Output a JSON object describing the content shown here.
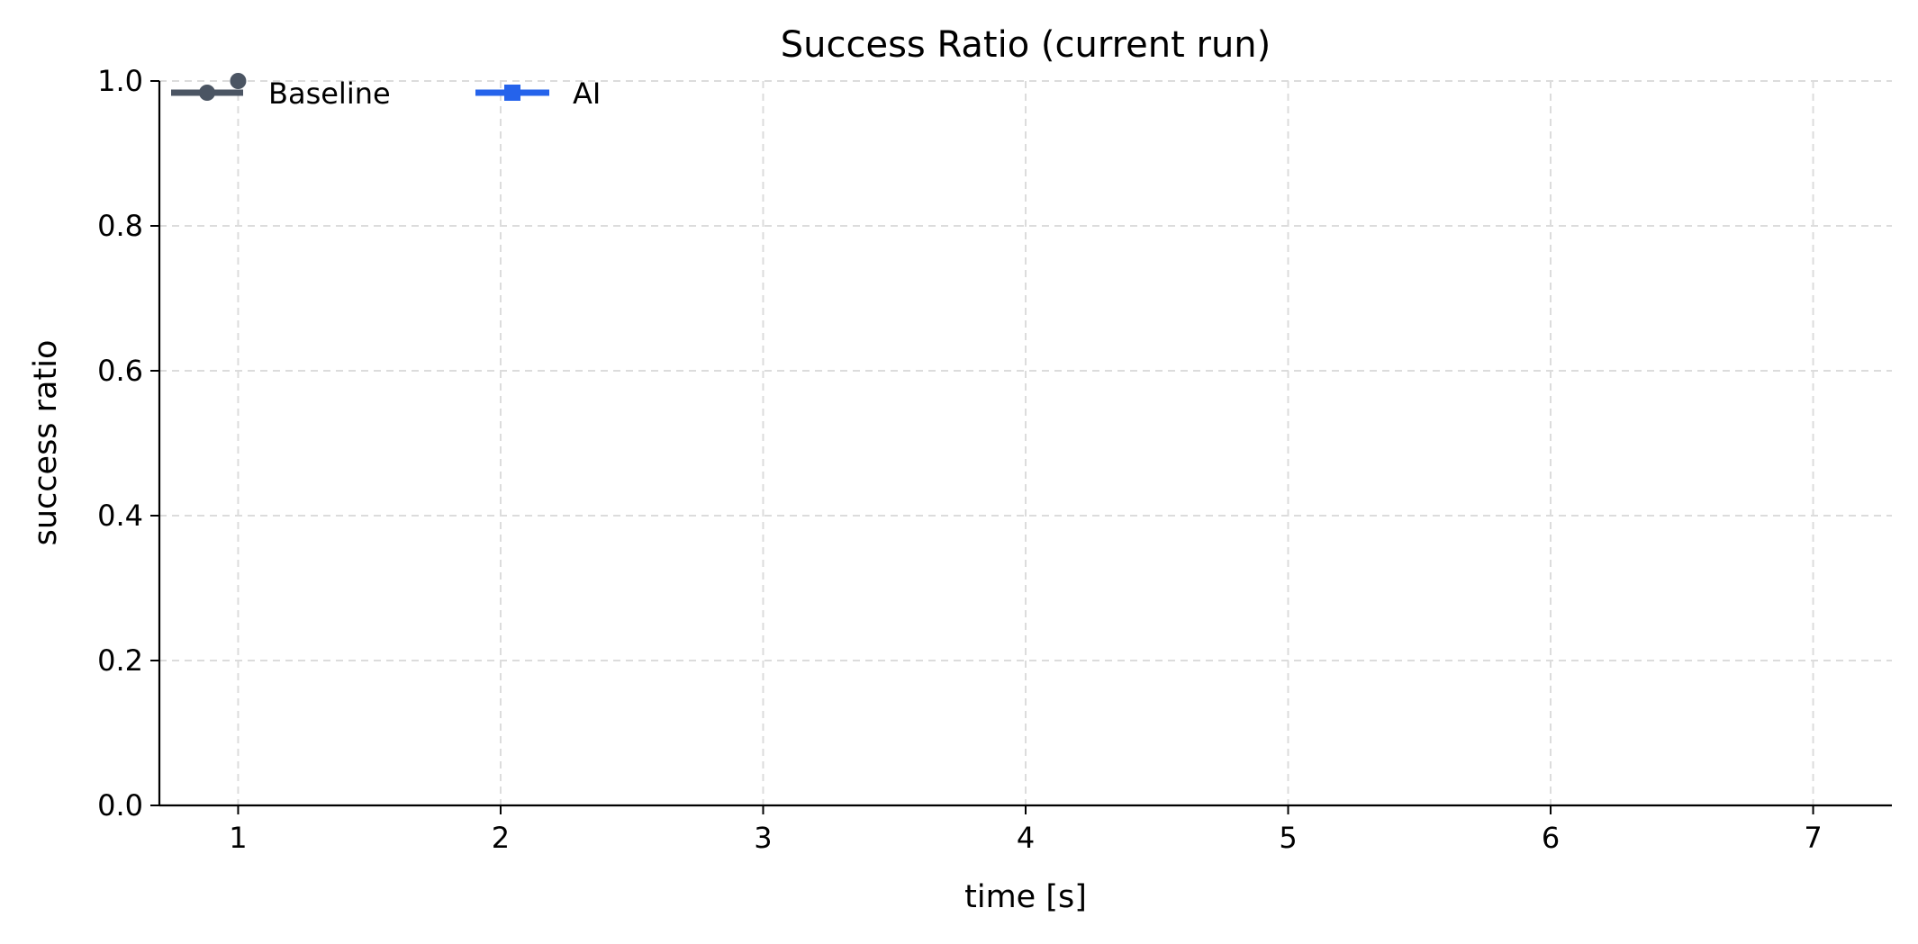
{
  "chart_data": {
    "type": "line",
    "title": "Success Ratio (current run)",
    "xlabel": "time [s]",
    "ylabel": "success ratio",
    "xlim": [
      0.7,
      7.3
    ],
    "ylim": [
      0.0,
      1.0
    ],
    "xticks": [
      1,
      2,
      3,
      4,
      5,
      6,
      7
    ],
    "yticks": [
      0.0,
      0.2,
      0.4,
      0.6,
      0.8,
      1.0
    ],
    "x_tick_labels": [
      "1",
      "2",
      "3",
      "4",
      "5",
      "6",
      "7"
    ],
    "y_tick_labels": [
      "0.0",
      "0.2",
      "0.4",
      "0.6",
      "0.8",
      "1.0"
    ],
    "grid": true,
    "legend_placement": "top-left",
    "series": [
      {
        "name": "Baseline",
        "color": "#4b5563",
        "marker": "circle",
        "x": [
          1
        ],
        "y": [
          1.0
        ]
      },
      {
        "name": "AI",
        "color": "#2563eb",
        "marker": "square",
        "x": [],
        "y": []
      }
    ]
  }
}
